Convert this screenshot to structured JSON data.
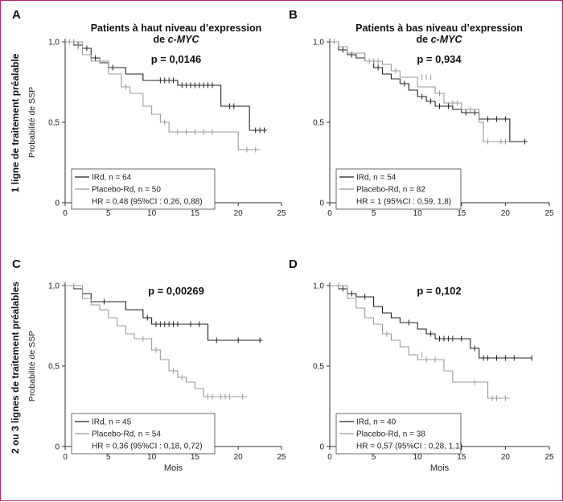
{
  "row_labels": [
    "1 ligne de traitement préalable",
    "2 ou 3 lignes de traitement préalables"
  ],
  "colors": {
    "ird": "#222222",
    "placebo": "#9a9a9a",
    "border": "#b0236a"
  },
  "chart_data": [
    {
      "type": "line",
      "letter": "A",
      "title_lines": [
        "Patients à haut niveau d’expression",
        "de c-MYC"
      ],
      "p_value": "p = 0,0146",
      "ylabel": "Probabilité de SSP",
      "xlabel": "",
      "xlim": [
        0,
        25
      ],
      "ylim": [
        0,
        1
      ],
      "x_ticks": [
        "0",
        "5",
        "10",
        "15",
        "20",
        "25"
      ],
      "y_ticks": [
        "0",
        "0,5",
        "1,0"
      ],
      "legend": {
        "ird": "IRd, n = 64",
        "placebo": "Placebo-Rd, n = 50",
        "hr": "HR = 0,48 (95%CI : 0,26, 0,88)"
      },
      "series": [
        {
          "name": "IRd, n = 64",
          "color": "ird",
          "steps": [
            [
              0,
              1.0
            ],
            [
              1,
              0.98
            ],
            [
              2,
              0.96
            ],
            [
              3,
              0.9
            ],
            [
              4,
              0.87
            ],
            [
              5,
              0.84
            ],
            [
              7,
              0.8
            ],
            [
              9,
              0.76
            ],
            [
              13,
              0.73
            ],
            [
              18,
              0.6
            ],
            [
              20,
              0.6
            ],
            [
              21.3,
              0.45
            ],
            [
              23.3,
              0.45
            ]
          ],
          "censor": [
            [
              1.5,
              0.98
            ],
            [
              2.5,
              0.96
            ],
            [
              3.5,
              0.9
            ],
            [
              5.5,
              0.84
            ],
            [
              11,
              0.76
            ],
            [
              11.5,
              0.76
            ],
            [
              12,
              0.76
            ],
            [
              12.5,
              0.76
            ],
            [
              13.5,
              0.73
            ],
            [
              14,
              0.73
            ],
            [
              14.5,
              0.73
            ],
            [
              15,
              0.73
            ],
            [
              15.5,
              0.73
            ],
            [
              16,
              0.73
            ],
            [
              16.5,
              0.73
            ],
            [
              17,
              0.73
            ],
            [
              19,
              0.6
            ],
            [
              19.5,
              0.6
            ],
            [
              22,
              0.45
            ],
            [
              22.5,
              0.45
            ],
            [
              23,
              0.45
            ]
          ]
        },
        {
          "name": "Placebo-Rd, n = 50",
          "color": "placebo",
          "steps": [
            [
              0,
              1.0
            ],
            [
              2,
              0.92
            ],
            [
              3,
              0.88
            ],
            [
              5,
              0.8
            ],
            [
              6.5,
              0.72
            ],
            [
              7.5,
              0.68
            ],
            [
              9,
              0.6
            ],
            [
              10,
              0.55
            ],
            [
              11,
              0.5
            ],
            [
              12,
              0.44
            ],
            [
              18,
              0.44
            ],
            [
              20,
              0.33
            ],
            [
              22.5,
              0.33
            ]
          ],
          "censor": [
            [
              0.5,
              1.0
            ],
            [
              1,
              1.0
            ],
            [
              1.5,
              0.97
            ],
            [
              4,
              0.88
            ],
            [
              7,
              0.72
            ],
            [
              11.5,
              0.5
            ],
            [
              13,
              0.44
            ],
            [
              14,
              0.44
            ],
            [
              15,
              0.44
            ],
            [
              16,
              0.44
            ],
            [
              17,
              0.44
            ],
            [
              21,
              0.33
            ],
            [
              22,
              0.33
            ]
          ]
        }
      ]
    },
    {
      "type": "line",
      "letter": "B",
      "title_lines": [
        "Patients à bas niveau d’expression",
        "de c-MYC"
      ],
      "p_value": "p = 0,934",
      "ylabel": "",
      "xlabel": "",
      "xlim": [
        0,
        25
      ],
      "ylim": [
        0,
        1
      ],
      "x_ticks": [
        "0",
        "5",
        "10",
        "15",
        "20",
        "25"
      ],
      "y_ticks": [
        "0",
        "0,5",
        "1,0"
      ],
      "legend": {
        "ird": "IRd, n = 54",
        "placebo": "Placebo-Rd, n = 82",
        "hr": "HR = 1 (95%CI : 0,59, 1,8)"
      },
      "series": [
        {
          "name": "IRd, n = 54",
          "color": "ird",
          "steps": [
            [
              0,
              1.0
            ],
            [
              1,
              0.95
            ],
            [
              2,
              0.92
            ],
            [
              3,
              0.9
            ],
            [
              4,
              0.88
            ],
            [
              5,
              0.84
            ],
            [
              6,
              0.8
            ],
            [
              7,
              0.77
            ],
            [
              8,
              0.74
            ],
            [
              9,
              0.7
            ],
            [
              10,
              0.66
            ],
            [
              11,
              0.63
            ],
            [
              12,
              0.6
            ],
            [
              14,
              0.58
            ],
            [
              15,
              0.56
            ],
            [
              17,
              0.52
            ],
            [
              20.5,
              0.38
            ],
            [
              22.5,
              0.38
            ]
          ],
          "censor": [
            [
              1.5,
              0.95
            ],
            [
              2.5,
              0.92
            ],
            [
              5.5,
              0.84
            ],
            [
              8.5,
              0.74
            ],
            [
              10.5,
              0.66
            ],
            [
              11.5,
              0.63
            ],
            [
              12.5,
              0.6
            ],
            [
              13.5,
              0.6
            ],
            [
              15.5,
              0.56
            ],
            [
              16.5,
              0.56
            ],
            [
              18,
              0.52
            ],
            [
              19,
              0.52
            ],
            [
              20,
              0.52
            ],
            [
              22.2,
              0.38
            ]
          ]
        },
        {
          "name": "Placebo-Rd, n = 82",
          "color": "placebo",
          "steps": [
            [
              0,
              1.0
            ],
            [
              1,
              0.97
            ],
            [
              2,
              0.93
            ],
            [
              4,
              0.88
            ],
            [
              6,
              0.86
            ],
            [
              7,
              0.82
            ],
            [
              8,
              0.78
            ],
            [
              10,
              0.72
            ],
            [
              12,
              0.68
            ],
            [
              13,
              0.62
            ],
            [
              15,
              0.58
            ],
            [
              17,
              0.5
            ],
            [
              17.5,
              0.38
            ],
            [
              20.5,
              0.38
            ]
          ],
          "censor": [
            [
              0.5,
              1.0
            ],
            [
              4.5,
              0.88
            ],
            [
              5,
              0.88
            ],
            [
              5.5,
              0.88
            ],
            [
              7.5,
              0.82
            ],
            [
              10.5,
              0.78
            ],
            [
              11,
              0.78
            ],
            [
              11.5,
              0.78
            ],
            [
              12.5,
              0.68
            ],
            [
              14,
              0.62
            ],
            [
              14.5,
              0.62
            ],
            [
              16,
              0.58
            ],
            [
              18,
              0.38
            ],
            [
              19.5,
              0.38
            ],
            [
              20,
              0.38
            ]
          ]
        }
      ]
    },
    {
      "type": "line",
      "letter": "C",
      "title_lines": [],
      "p_value": "p = 0,00269",
      "ylabel": "Probabilité de SSP",
      "xlabel": "Mois",
      "xlim": [
        0,
        25
      ],
      "ylim": [
        0,
        1
      ],
      "x_ticks": [
        "0",
        "5",
        "10",
        "15",
        "20",
        "25"
      ],
      "y_ticks": [
        "0",
        "0,5",
        "1,0"
      ],
      "legend": {
        "ird": "IRd, n = 45",
        "placebo": "Placebo-Rd, n = 54",
        "hr": "HR = 0,36 (95%CI : 0,18, 0,72)"
      },
      "series": [
        {
          "name": "IRd, n = 45",
          "color": "ird",
          "steps": [
            [
              0,
              1.0
            ],
            [
              1,
              0.98
            ],
            [
              2,
              0.95
            ],
            [
              3,
              0.9
            ],
            [
              7,
              0.85
            ],
            [
              9,
              0.8
            ],
            [
              10,
              0.76
            ],
            [
              16.5,
              0.66
            ],
            [
              22.8,
              0.66
            ]
          ],
          "censor": [
            [
              4.5,
              0.9
            ],
            [
              9.5,
              0.8
            ],
            [
              10.5,
              0.76
            ],
            [
              11,
              0.76
            ],
            [
              11.5,
              0.76
            ],
            [
              12,
              0.76
            ],
            [
              12.5,
              0.76
            ],
            [
              13,
              0.76
            ],
            [
              14.5,
              0.76
            ],
            [
              15.5,
              0.76
            ],
            [
              17.5,
              0.66
            ],
            [
              20,
              0.66
            ],
            [
              22.5,
              0.66
            ]
          ]
        },
        {
          "name": "Placebo-Rd, n = 54",
          "color": "placebo",
          "steps": [
            [
              0,
              1.0
            ],
            [
              2,
              0.92
            ],
            [
              3,
              0.88
            ],
            [
              4,
              0.85
            ],
            [
              5,
              0.8
            ],
            [
              6,
              0.75
            ],
            [
              7,
              0.7
            ],
            [
              8,
              0.67
            ],
            [
              10,
              0.6
            ],
            [
              11,
              0.54
            ],
            [
              12,
              0.47
            ],
            [
              13,
              0.43
            ],
            [
              14,
              0.4
            ],
            [
              15,
              0.36
            ],
            [
              16,
              0.31
            ],
            [
              21,
              0.31
            ]
          ],
          "censor": [
            [
              1,
              1.0
            ],
            [
              9,
              0.67
            ],
            [
              10.5,
              0.6
            ],
            [
              12.5,
              0.47
            ],
            [
              13.5,
              0.43
            ],
            [
              16.5,
              0.31
            ],
            [
              17,
              0.31
            ],
            [
              18,
              0.31
            ],
            [
              18.5,
              0.31
            ],
            [
              19,
              0.31
            ],
            [
              20.5,
              0.31
            ]
          ]
        }
      ]
    },
    {
      "type": "line",
      "letter": "D",
      "title_lines": [],
      "p_value": "p = 0,102",
      "ylabel": "",
      "xlabel": "Mois",
      "xlim": [
        0,
        25
      ],
      "ylim": [
        0,
        1
      ],
      "x_ticks": [
        "0",
        "5",
        "10",
        "15",
        "20",
        "25"
      ],
      "y_ticks": [
        "0",
        "0,5",
        "1,0"
      ],
      "legend": {
        "ird": "IRd, n = 40",
        "placebo": "Placebo-Rd, n = 38",
        "hr": "HR = 0,57 (95%CI : 0,28, 1,1)"
      },
      "series": [
        {
          "name": "IRd, n = 40",
          "color": "ird",
          "steps": [
            [
              0,
              1.0
            ],
            [
              1,
              0.98
            ],
            [
              2,
              0.95
            ],
            [
              3,
              0.93
            ],
            [
              5,
              0.87
            ],
            [
              6,
              0.83
            ],
            [
              7,
              0.8
            ],
            [
              8,
              0.77
            ],
            [
              10,
              0.73
            ],
            [
              11,
              0.7
            ],
            [
              12,
              0.67
            ],
            [
              16,
              0.61
            ],
            [
              17,
              0.55
            ],
            [
              23,
              0.55
            ]
          ],
          "censor": [
            [
              1.5,
              0.98
            ],
            [
              2.5,
              0.95
            ],
            [
              4,
              0.93
            ],
            [
              9,
              0.77
            ],
            [
              11.5,
              0.7
            ],
            [
              12.5,
              0.67
            ],
            [
              13,
              0.67
            ],
            [
              13.5,
              0.67
            ],
            [
              14,
              0.67
            ],
            [
              15,
              0.67
            ],
            [
              16.5,
              0.61
            ],
            [
              17.5,
              0.55
            ],
            [
              18,
              0.55
            ],
            [
              19,
              0.55
            ],
            [
              20,
              0.55
            ],
            [
              21,
              0.55
            ],
            [
              23,
              0.55
            ]
          ]
        },
        {
          "name": "Placebo-Rd, n = 38",
          "color": "placebo",
          "steps": [
            [
              0,
              1.0
            ],
            [
              2,
              0.92
            ],
            [
              3,
              0.86
            ],
            [
              4,
              0.8
            ],
            [
              5,
              0.76
            ],
            [
              6,
              0.7
            ],
            [
              7,
              0.66
            ],
            [
              8,
              0.62
            ],
            [
              9,
              0.57
            ],
            [
              10,
              0.54
            ],
            [
              13,
              0.47
            ],
            [
              14,
              0.4
            ],
            [
              18,
              0.3
            ],
            [
              20.5,
              0.3
            ]
          ],
          "censor": [
            [
              1,
              1.0
            ],
            [
              6.5,
              0.7
            ],
            [
              10.5,
              0.57
            ],
            [
              11,
              0.54
            ],
            [
              12,
              0.54
            ],
            [
              16.5,
              0.4
            ],
            [
              18.5,
              0.3
            ],
            [
              19,
              0.3
            ],
            [
              20,
              0.3
            ]
          ]
        }
      ]
    }
  ]
}
